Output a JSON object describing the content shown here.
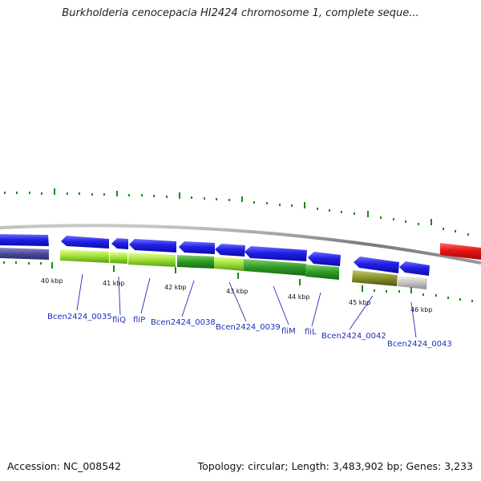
{
  "title": "Burkholderia cenocepacia HI2424 chromosome 1, complete seque...",
  "accession": "Accession: NC_008542",
  "summary": "Topology: circular; Length: 3,483,902 bp; Genes: 3,233",
  "scale_labels": [
    "40 kbp",
    "41 kbp",
    "42 kbp",
    "43 kbp",
    "44 kbp",
    "45 kbp",
    "46 kbp"
  ],
  "gene_labels": [
    "Bcen2424_0035",
    "fliQ",
    "fliP",
    "Bcen2424_0038",
    "Bcen2424_0039",
    "fliM",
    "fliL",
    "Bcen2424_0042",
    "Bcen2424_0043"
  ],
  "colors": {
    "forward_cds": "#1f1fe0",
    "reverse_cds": "#e01414",
    "backbone": "#888888",
    "label": "#1f2db5",
    "tick": "#1a8a1a"
  }
}
